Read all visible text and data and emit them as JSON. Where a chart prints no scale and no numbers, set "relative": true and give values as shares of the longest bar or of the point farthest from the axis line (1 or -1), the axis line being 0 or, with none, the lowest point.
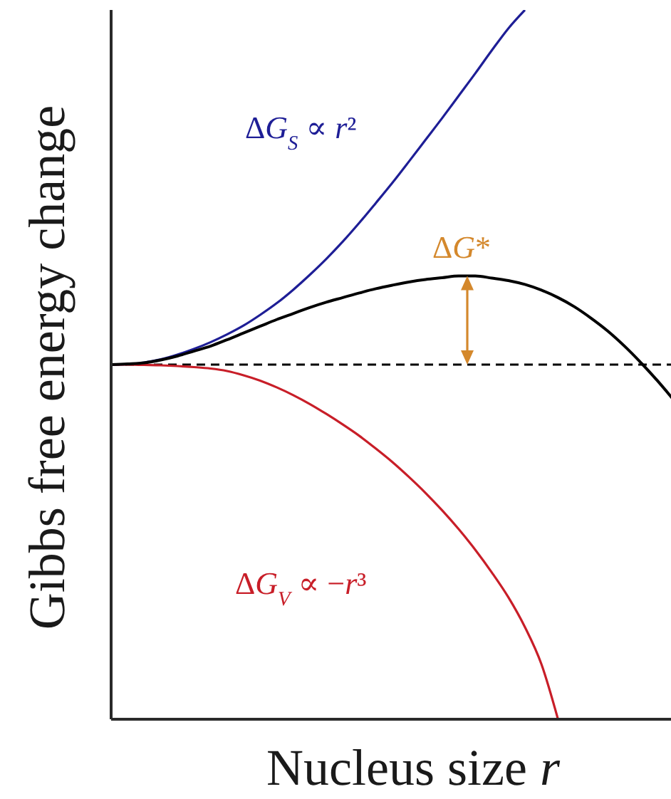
{
  "chart_data": {
    "type": "line",
    "relative": true,
    "xlabel": "Nucleus size r",
    "ylabel": "Gibbs free energy change",
    "categories": [
      null,
      null,
      null,
      null,
      null,
      null,
      null,
      null,
      null,
      null,
      null,
      null,
      null,
      null,
      null,
      null,
      null,
      null,
      null,
      null,
      null,
      null,
      null,
      null,
      null,
      null,
      null,
      null,
      null,
      null,
      null,
      null,
      null,
      null,
      null
    ],
    "series": [
      {
        "name": "ΔG$_{S}$ ∝ r²",
        "color": "#1e1e96",
        "values": [
          0,
          0.001,
          0.006,
          0.015,
          0.028,
          0.044,
          0.063,
          0.085,
          0.11,
          0.14,
          0.173,
          0.211,
          0.253,
          0.298,
          0.347,
          0.4,
          0.456,
          0.513,
          0.573,
          0.634,
          0.695,
          0.758,
          0.821,
          0.886,
          0.948,
          1,
          null,
          null,
          null,
          null,
          null,
          null,
          null,
          null,
          null
        ]
      },
      {
        "name": "ΔG$_{V}$ ∝ −r³",
        "color": "#c81e28",
        "values": [
          0,
          0,
          -0.001,
          -0.002,
          -0.004,
          -0.007,
          -0.011,
          -0.018,
          -0.03,
          -0.045,
          -0.064,
          -0.086,
          -0.111,
          -0.139,
          -0.169,
          -0.201,
          -0.237,
          -0.275,
          -0.317,
          -0.362,
          -0.411,
          -0.464,
          -0.522,
          -0.586,
          -0.656,
          -0.74,
          -0.845,
          -1,
          null,
          null,
          null,
          null,
          null,
          null,
          null
        ]
      },
      {
        "color": "#000000",
        "values": [
          0,
          0.002,
          0.005,
          0.013,
          0.024,
          0.038,
          0.052,
          0.07,
          0.089,
          0.108,
          0.127,
          0.144,
          0.161,
          0.176,
          0.189,
          0.202,
          0.214,
          0.224,
          0.233,
          0.24,
          0.245,
          0.25,
          0.25,
          0.244,
          0.237,
          0.226,
          0.21,
          0.189,
          0.163,
          0.131,
          0.095,
          0.053,
          0.006,
          -0.045,
          -0.1
        ]
      }
    ],
    "ref_lines": [
      {
        "axis": "y",
        "value": 0,
        "color": "#000000",
        "line_style": "dashed"
      }
    ],
    "annotations": [
      {
        "text": "ΔG*",
        "y": 0.25
      }
    ]
  }
}
